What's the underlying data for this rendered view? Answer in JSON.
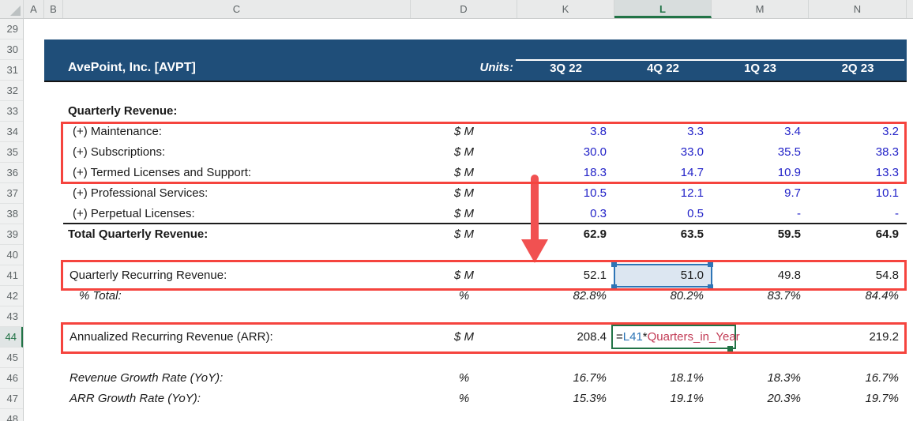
{
  "colors": {
    "band_navy": "#1F4E79",
    "input_blue": "#2222C8",
    "annotation_red": "#F5443E",
    "selection_blue": "#2E75B6",
    "edit_green": "#217346"
  },
  "header_row": {
    "columns": [
      "A",
      "B",
      "C",
      "D",
      "K",
      "L",
      "M",
      "N"
    ],
    "selected": "L"
  },
  "row_headers": {
    "numbers": [
      29,
      30,
      31,
      32,
      33,
      34,
      35,
      36,
      37,
      38,
      39,
      40,
      41,
      42,
      43,
      44,
      45,
      46,
      47,
      48
    ],
    "selected": 44
  },
  "title_band": {
    "company": "AvePoint, Inc. [AVPT]",
    "units_label": "Units:",
    "quarters": [
      "3Q 22",
      "4Q 22",
      "1Q 23",
      "2Q 23"
    ]
  },
  "table": {
    "rows": [
      {
        "row": 33,
        "indent": 0,
        "label": "Quarterly Revenue:",
        "label_bold": true,
        "units": "",
        "values": [
          "",
          "",
          "",
          ""
        ]
      },
      {
        "row": 34,
        "indent": 2,
        "label": "(+) Maintenance:",
        "units": "$ M",
        "values": [
          "3.8",
          "3.3",
          "3.4",
          "3.2"
        ],
        "input": true
      },
      {
        "row": 35,
        "indent": 2,
        "label": "(+) Subscriptions:",
        "units": "$ M",
        "values": [
          "30.0",
          "33.0",
          "35.5",
          "38.3"
        ],
        "input": true
      },
      {
        "row": 36,
        "indent": 2,
        "label": "(+) Termed Licenses and Support:",
        "units": "$ M",
        "values": [
          "18.3",
          "14.7",
          "10.9",
          "13.3"
        ],
        "input": true
      },
      {
        "row": 37,
        "indent": 2,
        "label": "(+) Professional Services:",
        "units": "$ M",
        "values": [
          "10.5",
          "12.1",
          "9.7",
          "10.1"
        ],
        "input": true
      },
      {
        "row": 38,
        "indent": 2,
        "label": "(+) Perpetual Licenses:",
        "units": "$ M",
        "values": [
          "0.3",
          "0.5",
          "-",
          "-"
        ],
        "input": true
      },
      {
        "row": 39,
        "indent": 0,
        "label": "Total Quarterly Revenue:",
        "label_bold": true,
        "units": "$ M",
        "values": [
          "62.9",
          "63.5",
          "59.5",
          "64.9"
        ],
        "value_bold": true
      },
      {
        "row": 41,
        "indent": 1,
        "label": "Quarterly Recurring Revenue:",
        "units": "$ M",
        "values": [
          "52.1",
          "51.0",
          "49.8",
          "54.8"
        ]
      },
      {
        "row": 42,
        "indent": 3,
        "label": "% Total:",
        "label_italic": true,
        "units": "%",
        "values": [
          "82.8%",
          "80.2%",
          "83.7%",
          "84.4%"
        ],
        "value_italic": true
      },
      {
        "row": 44,
        "indent": 1,
        "label": "Annualized Recurring Revenue (ARR):",
        "units": "$ M",
        "values": [
          "208.4",
          "",
          "",
          "219.2"
        ]
      },
      {
        "row": 46,
        "indent": 1,
        "label": "Revenue Growth Rate (YoY):",
        "label_italic": true,
        "units": "%",
        "values": [
          "16.7%",
          "18.1%",
          "18.3%",
          "16.7%"
        ],
        "value_italic": true
      },
      {
        "row": 47,
        "indent": 1,
        "label": "ARR Growth Rate (YoY):",
        "label_italic": true,
        "units": "%",
        "values": [
          "15.3%",
          "19.1%",
          "20.3%",
          "19.7%"
        ],
        "value_italic": true
      }
    ]
  },
  "formula": {
    "cell": "L44",
    "parts": [
      {
        "text": "=",
        "color": "#1A1A1A"
      },
      {
        "text": "L41",
        "color": "#2E75B6"
      },
      {
        "text": "*",
        "color": "#1A1A1A"
      },
      {
        "text": "Quarters_in_Year",
        "color": "#C23B55"
      }
    ]
  }
}
